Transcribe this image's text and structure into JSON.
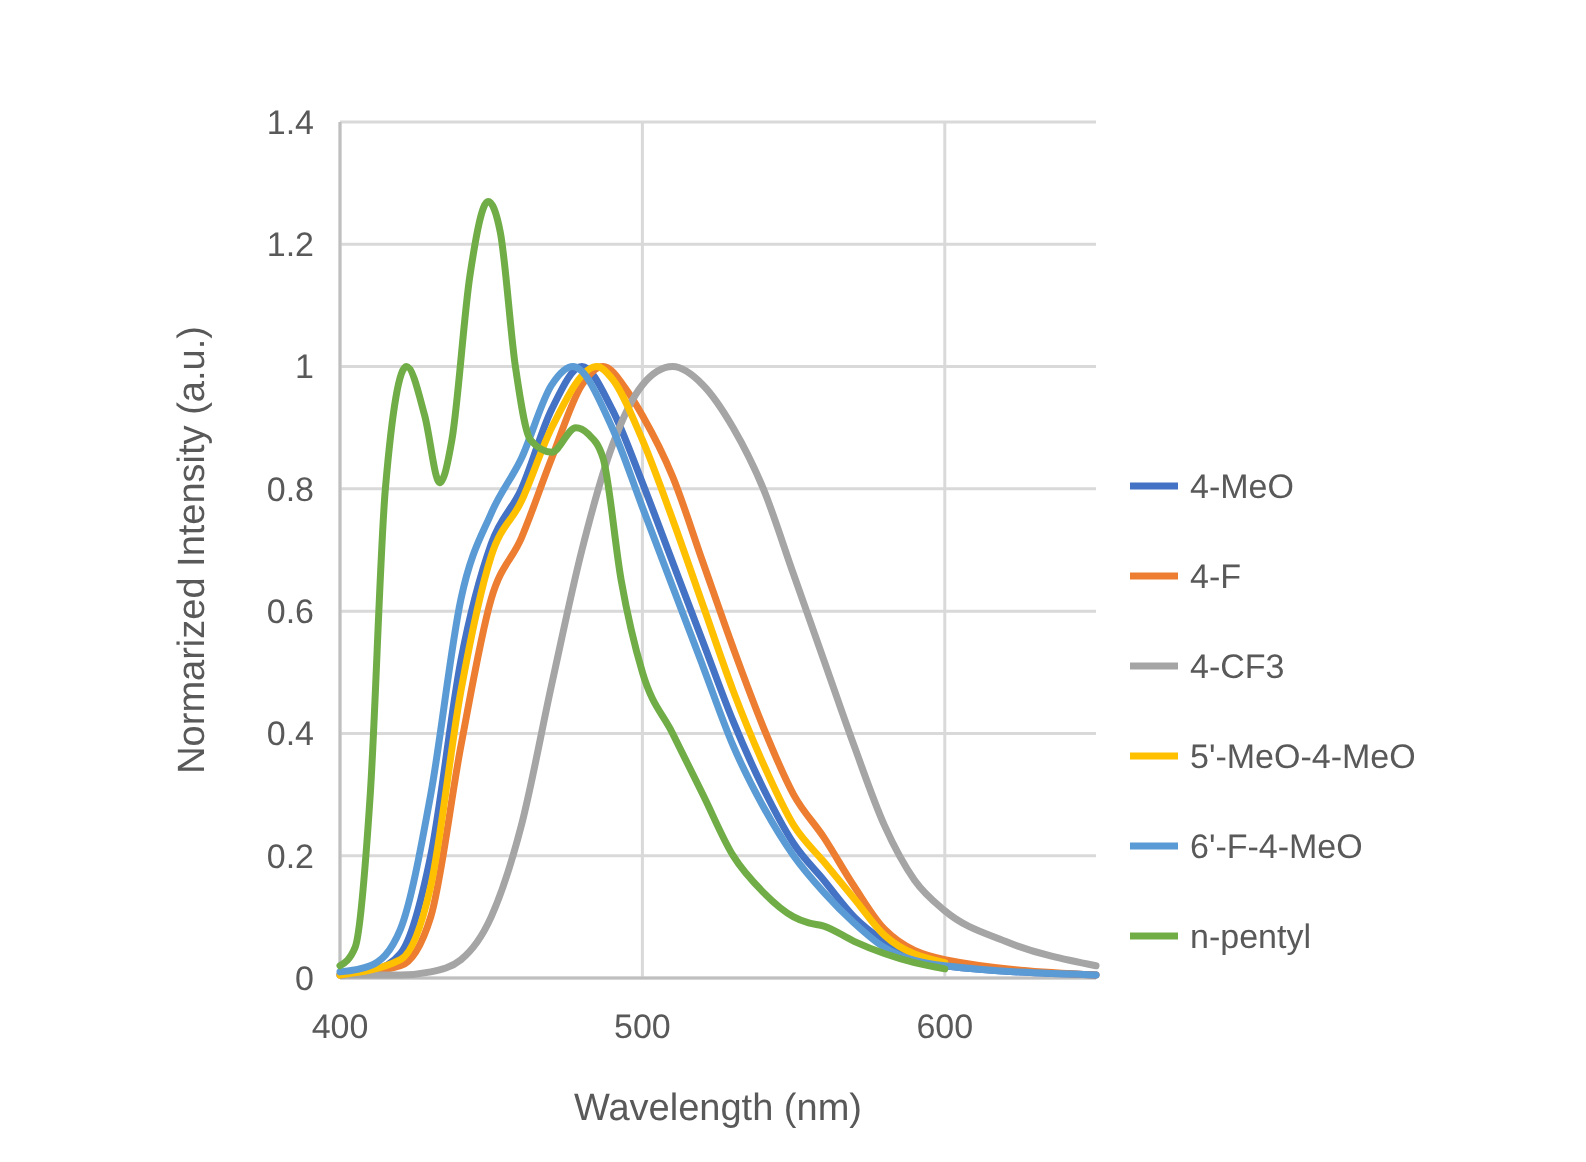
{
  "chart_data": {
    "type": "line",
    "xlabel": "Wavelength (nm)",
    "ylabel": "Normarized Intensity (a.u.)",
    "xlim": [
      400,
      650
    ],
    "xticks": [
      400,
      500,
      600
    ],
    "ylim": [
      0,
      1.4
    ],
    "yticks": [
      0,
      0.2,
      0.4,
      0.6,
      0.8,
      1,
      1.2,
      1.4
    ],
    "grid": true,
    "legend": "right",
    "marker": "none",
    "line_style": "solid",
    "series": [
      {
        "name": "4-MeO",
        "color": "#4472c4",
        "x": [
          400,
          410,
          420,
          430,
          440,
          450,
          460,
          470,
          480,
          490,
          500,
          510,
          520,
          530,
          540,
          550,
          560,
          570,
          580,
          600,
          650
        ],
        "values": [
          0.005,
          0.01,
          0.04,
          0.2,
          0.52,
          0.71,
          0.8,
          0.93,
          1.0,
          0.93,
          0.81,
          0.68,
          0.55,
          0.42,
          0.31,
          0.22,
          0.16,
          0.1,
          0.06,
          0.02,
          0.005
        ]
      },
      {
        "name": "4-F",
        "color": "#ed7d31",
        "x": [
          400,
          420,
          430,
          440,
          450,
          460,
          470,
          480,
          487,
          495,
          500,
          510,
          520,
          530,
          540,
          550,
          560,
          570,
          580,
          600,
          650
        ],
        "values": [
          0.005,
          0.02,
          0.1,
          0.38,
          0.62,
          0.72,
          0.85,
          0.97,
          1.0,
          0.96,
          0.92,
          0.82,
          0.68,
          0.54,
          0.41,
          0.3,
          0.23,
          0.15,
          0.08,
          0.03,
          0.005
        ]
      },
      {
        "name": "4-CF3",
        "color": "#a5a5a5",
        "x": [
          400,
          420,
          430,
          440,
          450,
          460,
          470,
          480,
          490,
          500,
          510,
          520,
          530,
          540,
          550,
          560,
          570,
          580,
          590,
          600,
          620,
          650
        ],
        "values": [
          0.005,
          0.005,
          0.01,
          0.03,
          0.1,
          0.25,
          0.48,
          0.7,
          0.87,
          0.97,
          1.0,
          0.97,
          0.9,
          0.8,
          0.66,
          0.52,
          0.38,
          0.25,
          0.16,
          0.11,
          0.06,
          0.02
        ]
      },
      {
        "name": "5'-MeO-4-MeO",
        "color": "#ffc000",
        "x": [
          400,
          420,
          430,
          440,
          450,
          460,
          470,
          485,
          490,
          500,
          510,
          520,
          530,
          540,
          550,
          560,
          570,
          580,
          600
        ],
        "values": [
          0.005,
          0.03,
          0.15,
          0.47,
          0.69,
          0.78,
          0.9,
          1.0,
          0.98,
          0.88,
          0.75,
          0.61,
          0.47,
          0.35,
          0.25,
          0.19,
          0.13,
          0.07,
          0.025
        ]
      },
      {
        "name": "6'-F-4-MeO",
        "color": "#5b9bd5",
        "x": [
          400,
          410,
          420,
          430,
          440,
          450,
          460,
          470,
          477,
          490,
          500,
          510,
          520,
          530,
          540,
          550,
          560,
          570,
          580,
          600,
          650
        ],
        "values": [
          0.01,
          0.02,
          0.08,
          0.3,
          0.62,
          0.76,
          0.85,
          0.97,
          1.0,
          0.9,
          0.77,
          0.64,
          0.51,
          0.38,
          0.28,
          0.2,
          0.14,
          0.09,
          0.05,
          0.02,
          0.005
        ]
      },
      {
        "name": "n-pentyl",
        "color": "#70ad47",
        "x": [
          400,
          405,
          410,
          415,
          422,
          428,
          433,
          437,
          443,
          449,
          453,
          458,
          463,
          470,
          478,
          482,
          487,
          493,
          500,
          510,
          520,
          530,
          540,
          550,
          555,
          560,
          570,
          580,
          590,
          600
        ],
        "values": [
          0.02,
          0.05,
          0.3,
          0.8,
          1.0,
          0.92,
          0.81,
          0.88,
          1.15,
          1.27,
          1.22,
          1.0,
          0.88,
          0.86,
          0.9,
          0.89,
          0.85,
          0.65,
          0.5,
          0.4,
          0.3,
          0.2,
          0.14,
          0.1,
          0.09,
          0.085,
          0.06,
          0.04,
          0.025,
          0.015
        ]
      }
    ]
  }
}
